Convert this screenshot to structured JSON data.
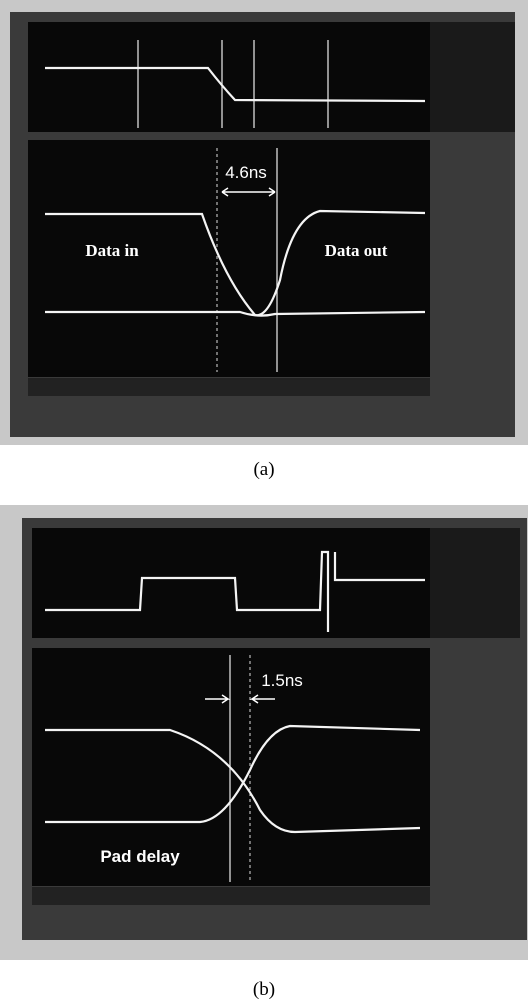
{
  "panels": [
    {
      "measure": "4.6ns",
      "left_label": "Data in",
      "right_label": "Data out",
      "caption": "(a)"
    },
    {
      "measure": "1.5ns",
      "left_label": "Pad delay",
      "caption": "(b)"
    }
  ]
}
